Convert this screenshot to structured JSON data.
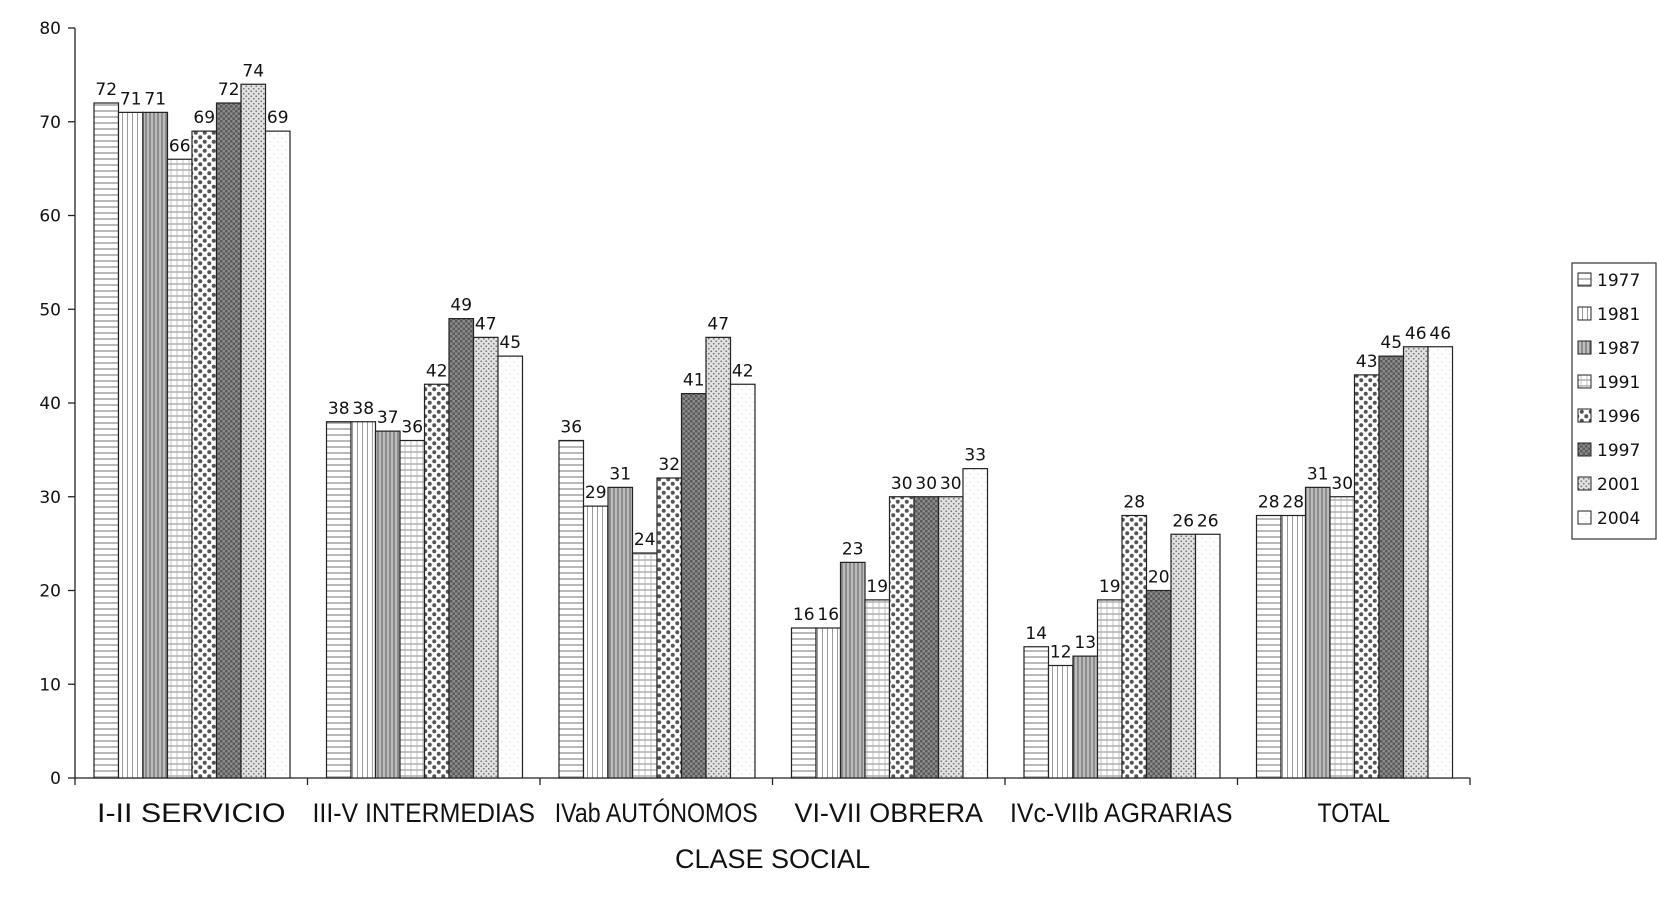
{
  "chart_data": {
    "type": "bar",
    "title": "",
    "xlabel": "CLASE SOCIAL",
    "ylabel": "",
    "ylim": [
      0,
      80
    ],
    "yticks": [
      0,
      10,
      20,
      30,
      40,
      50,
      60,
      70,
      80
    ],
    "grid": false,
    "legend_position": "right",
    "categories": [
      "I-II SERVICIO",
      "III-V INTERMEDIAS",
      "IVab AUTÓNOMOS",
      "VI-VII OBRERA",
      "IVc-VIIb AGRARIAS",
      "TOTAL"
    ],
    "series": [
      {
        "name": "1977",
        "values": [
          72,
          38,
          36,
          16,
          14,
          28
        ]
      },
      {
        "name": "1981",
        "values": [
          71,
          38,
          29,
          16,
          12,
          28
        ]
      },
      {
        "name": "1987",
        "values": [
          71,
          37,
          31,
          23,
          13,
          31
        ]
      },
      {
        "name": "1991",
        "values": [
          66,
          36,
          24,
          19,
          19,
          30
        ]
      },
      {
        "name": "1996",
        "values": [
          69,
          42,
          32,
          30,
          28,
          43
        ]
      },
      {
        "name": "1997",
        "values": [
          72,
          49,
          41,
          30,
          20,
          45
        ]
      },
      {
        "name": "2001",
        "values": [
          74,
          47,
          47,
          30,
          26,
          46
        ]
      },
      {
        "name": "2004",
        "values": [
          69,
          45,
          42,
          33,
          26,
          46
        ]
      }
    ]
  }
}
